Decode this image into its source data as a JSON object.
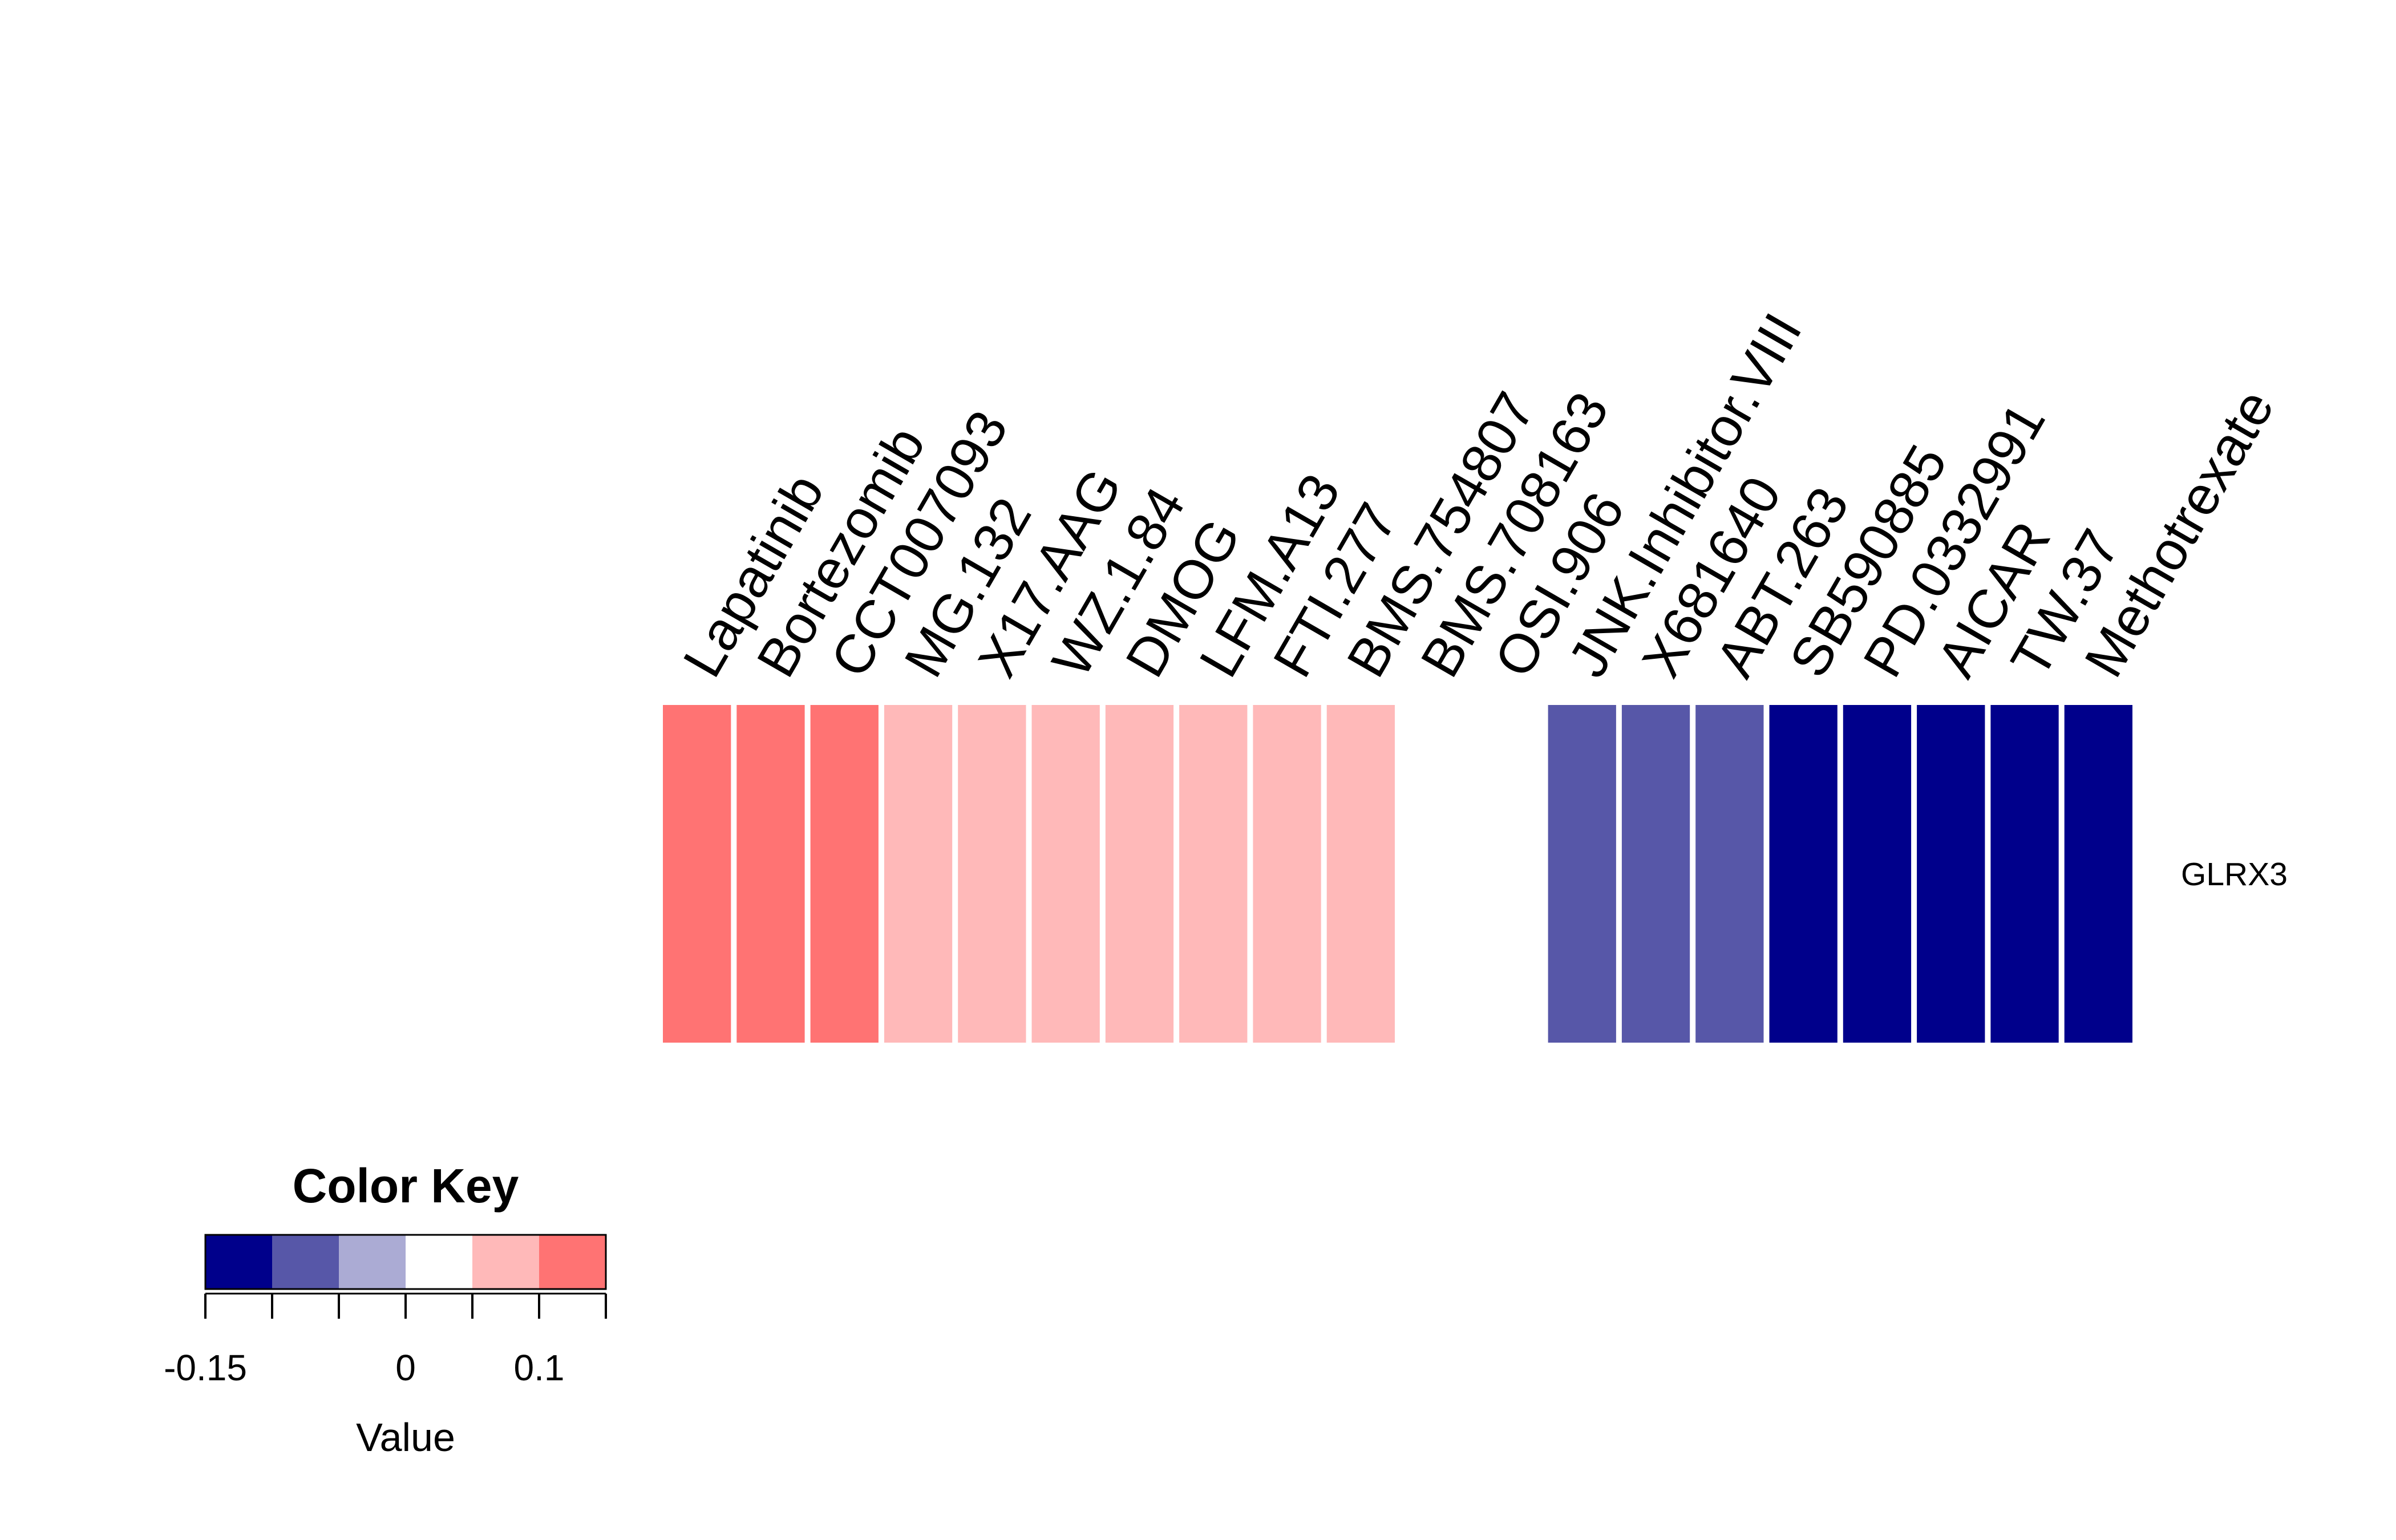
{
  "chart_data": {
    "type": "heatmap",
    "rows": [
      "GLRX3"
    ],
    "columns": [
      "Lapatinib",
      "Bortezomib",
      "CCT007093",
      "MG.132",
      "X17.AAG",
      "WZ.1.84",
      "DMOG",
      "LFM.A13",
      "FTI.277",
      "BMS.754807",
      "BMS.708163",
      "OSI.906",
      "JNK.Inhibitor.VIII",
      "X681640",
      "ABT.263",
      "SB590885",
      "PD.0332991",
      "AICAR",
      "TW.37",
      "Methotrexate"
    ],
    "values": [
      [
        0.125,
        0.125,
        0.125,
        0.075,
        0.075,
        0.075,
        0.075,
        0.075,
        0.075,
        0.075,
        0.025,
        0.025,
        -0.075,
        -0.075,
        -0.075,
        -0.125,
        -0.125,
        -0.125,
        -0.125,
        -0.125
      ]
    ],
    "color_key": {
      "title": "Color Key",
      "xlabel": "Value",
      "breaks": [
        -0.15,
        -0.1,
        -0.05,
        0,
        0.05,
        0.1,
        0.15
      ],
      "colors": [
        "#00008B",
        "#5757A8",
        "#ABABD4",
        "#FFFFFF",
        "#FFB9B9",
        "#FF7373",
        "#FF3030"
      ],
      "tick_values": [
        -0.15,
        -0.1,
        -0.05,
        0,
        0.05,
        0.1,
        0.15
      ],
      "tick_labels": [
        {
          "value": -0.15,
          "label": "-0.15"
        },
        {
          "value": 0,
          "label": "0"
        },
        {
          "value": 0.1,
          "label": "0.1"
        }
      ]
    }
  }
}
